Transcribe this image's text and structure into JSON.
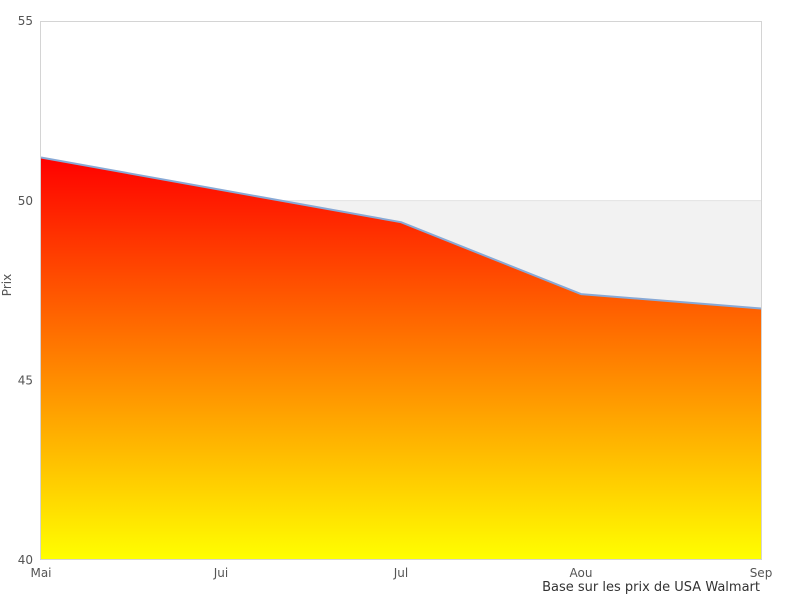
{
  "chart_data": {
    "type": "area",
    "categories": [
      "Mai",
      "Jui",
      "Jul",
      "Aou",
      "Sep"
    ],
    "values": [
      51.2,
      50.3,
      49.4,
      47.4,
      47.0
    ],
    "title": "",
    "xlabel": "",
    "ylabel": "Prix",
    "caption": "Base sur les prix de USA Walmart",
    "ylim": [
      40,
      55
    ],
    "yticks": [
      55,
      50,
      45,
      40
    ],
    "grid": false,
    "legend": "none",
    "markers": false,
    "plot_band": {
      "from": 40,
      "to": 50,
      "color": "#f2f2f2",
      "edge_color": "#e3e3e3"
    },
    "colors": {
      "gradient_top": "#ff0000",
      "gradient_bottom": "#ffff00",
      "line": "#88a9d6",
      "border": "#d4d4d4",
      "tick_text": "#555555",
      "caption_text": "#333333",
      "background": "#ffffff"
    }
  }
}
